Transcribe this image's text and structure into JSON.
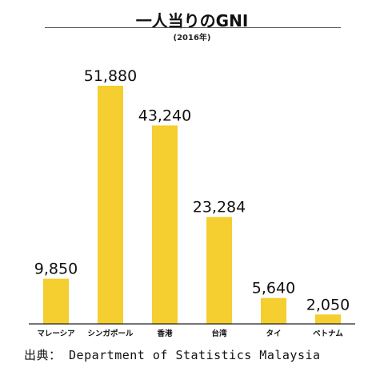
{
  "title": "一人当りのGNI",
  "subtitle": "(2016年)",
  "source": "出典： Department of Statistics Malaysia",
  "colors": {
    "bar": "#F5CE2F",
    "axis": "#222222",
    "text": "#111111"
  },
  "chart_data": {
    "type": "bar",
    "title": "一人当りのGNI",
    "subtitle": "(2016年)",
    "categories": [
      "マレーシア",
      "シンガポール",
      "香港",
      "台湾",
      "タイ",
      "ベトナム"
    ],
    "values": [
      9850,
      51880,
      43240,
      23284,
      5640,
      2050
    ],
    "data_labels": [
      "9,850",
      "51,880",
      "43,240",
      "23,284",
      "5,640",
      "2,050"
    ],
    "xlabel": "",
    "ylabel": "",
    "ylim": [
      0,
      55000
    ],
    "grid": false,
    "legend": "none"
  }
}
